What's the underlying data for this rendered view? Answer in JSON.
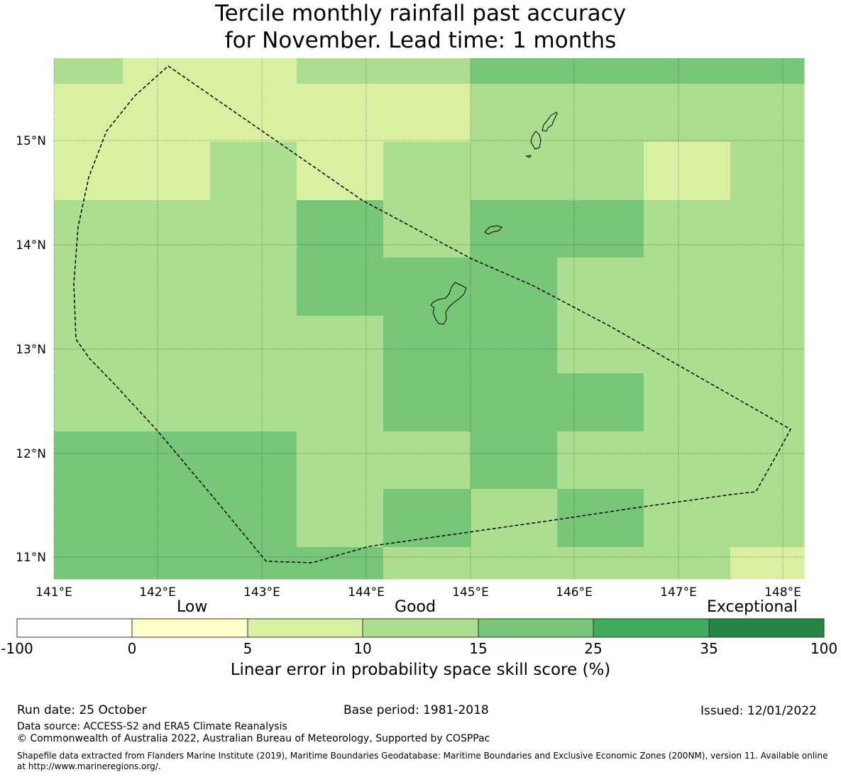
{
  "title": {
    "line1": "Tercile monthly rainfall past accuracy",
    "line2": "for November. Lead time: 1 months"
  },
  "axes": {
    "lon_ticks": [
      "141°E",
      "142°E",
      "143°E",
      "144°E",
      "145°E",
      "146°E",
      "147°E",
      "148°E"
    ],
    "lat_ticks": [
      "15°N",
      "14°N",
      "13°N",
      "12°N",
      "11°N"
    ]
  },
  "colorbar": {
    "category_labels": [
      "Low",
      "Good",
      "Exceptional"
    ],
    "ticks": [
      "-100",
      "0",
      "5",
      "10",
      "15",
      "25",
      "35",
      "100"
    ],
    "colors": [
      "#ffffff",
      "#ffffcc",
      "#d9f0a3",
      "#addd8e",
      "#78c679",
      "#41ab5d",
      "#238443"
    ],
    "caption": "Linear error in probability space skill score (%)"
  },
  "footer": {
    "run_date": "Run date: 25 October",
    "base_period": "Base period: 1981-2018",
    "issued": "Issued: 12/01/2022",
    "data_source": "Data source: ACCESS-S2 and ERA5 Climate Reanalysis",
    "copyright": "© Commonwealth of Australia 2022, Australian Bureau of Meteorology, Supported by COSPPac",
    "shapefile_line1": "Shapefile data extracted from Flanders Marine Institute (2019), Maritime Boundaries Geodatabase: Maritime Boundaries and Exclusive Economic Zones (200NM), version 11. Available online",
    "shapefile_line2": "at http://www.marineregions.org/."
  },
  "map_data": {
    "grid_colors_by_class": [
      "#ffffff",
      "#ffffcc",
      "#d9f0a3",
      "#addd8e",
      "#78c679",
      "#41ab5d",
      "#238443"
    ],
    "skill_class_rows_north_to_south": [
      [
        3,
        2,
        2,
        3,
        3,
        4,
        4,
        4,
        4
      ],
      [
        2,
        2,
        2,
        2,
        2,
        3,
        3,
        3,
        3
      ],
      [
        2,
        2,
        3,
        2,
        3,
        3,
        3,
        2,
        3
      ],
      [
        3,
        3,
        3,
        4,
        3,
        4,
        4,
        3,
        3
      ],
      [
        3,
        3,
        3,
        4,
        4,
        4,
        3,
        3,
        3
      ],
      [
        3,
        3,
        3,
        3,
        4,
        4,
        3,
        3,
        3
      ],
      [
        3,
        3,
        3,
        3,
        4,
        4,
        4,
        3,
        3
      ],
      [
        4,
        4,
        4,
        3,
        3,
        4,
        3,
        3,
        3
      ],
      [
        4,
        4,
        4,
        3,
        4,
        3,
        4,
        3,
        3
      ],
      [
        4,
        4,
        4,
        4,
        3,
        3,
        3,
        3,
        2
      ]
    ]
  }
}
